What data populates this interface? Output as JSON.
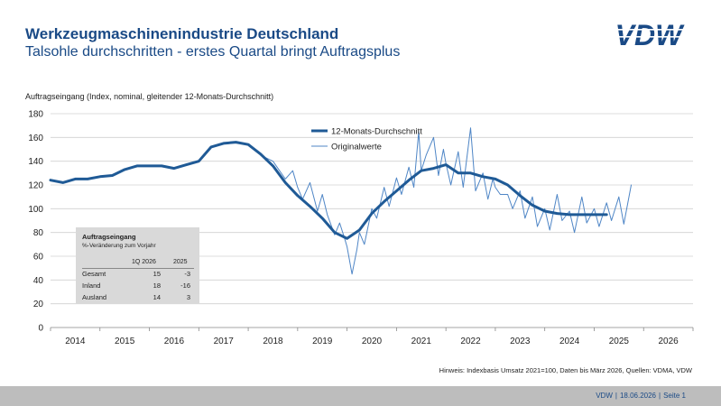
{
  "header": {
    "title": "Werkzeugmaschinenindustrie Deutschland",
    "subtitle": "Talsohle durchschritten - erstes Quartal bringt Auftragsplus",
    "logo_text": "VDW"
  },
  "colors": {
    "accent": "#1a4a86",
    "series_main": "#1f5a96",
    "series_raw": "#4f86c6",
    "grid": "#d0d0d0",
    "footer_bg": "#bdbdbd",
    "box_bg": "#d9d9d9"
  },
  "infobox": {
    "title": "Auftragseingang",
    "subtitle": "%-Veränderung zum Vorjahr",
    "col1": "1Q 2026",
    "col2": "2025",
    "rows": [
      {
        "label": "Gesamt",
        "v1": "15",
        "v2": "-3"
      },
      {
        "label": "Inland",
        "v1": "18",
        "v2": "-16"
      },
      {
        "label": "Ausland",
        "v1": "14",
        "v2": "3"
      }
    ]
  },
  "note": "Hinweis: Indexbasis Umsatz 2021=100, Daten bis März 2026, Quellen: VDMA, VDW",
  "footer": {
    "org": "VDW",
    "date": "18.06.2026",
    "page": "Seite 1"
  },
  "chart_data": {
    "type": "line",
    "ylabel": "Auftragseingang (Index, nominal, gleitender 12-Monats-Durchschnitt)",
    "ylim": [
      0,
      180
    ],
    "yticks": [
      0,
      20,
      40,
      60,
      80,
      100,
      120,
      140,
      160,
      180
    ],
    "xlim": [
      2014.0,
      2027.0
    ],
    "xticks": [
      "2014",
      "2015",
      "2016",
      "2017",
      "2018",
      "2019",
      "2020",
      "2021",
      "2022",
      "2023",
      "2024",
      "2025",
      "2026"
    ],
    "grid": true,
    "legend": "top-center",
    "series": [
      {
        "name": "12-Monats-Durchschnitt",
        "x": [
          2014.0,
          2014.25,
          2014.5,
          2014.75,
          2015.0,
          2015.25,
          2015.5,
          2015.75,
          2016.0,
          2016.25,
          2016.5,
          2016.75,
          2017.0,
          2017.25,
          2017.5,
          2017.75,
          2018.0,
          2018.25,
          2018.5,
          2018.75,
          2019.0,
          2019.25,
          2019.5,
          2019.75,
          2020.0,
          2020.25,
          2020.5,
          2020.75,
          2021.0,
          2021.25,
          2021.5,
          2021.75,
          2022.0,
          2022.25,
          2022.5,
          2022.75,
          2023.0,
          2023.25,
          2023.5,
          2023.75,
          2024.0,
          2024.25,
          2024.5,
          2024.75,
          2025.0,
          2025.25
        ],
        "values": [
          124,
          122,
          125,
          125,
          127,
          128,
          133,
          136,
          136,
          136,
          134,
          137,
          140,
          152,
          155,
          156,
          154,
          146,
          136,
          122,
          111,
          102,
          92,
          80,
          75,
          82,
          96,
          106,
          115,
          124,
          132,
          134,
          137,
          130,
          130,
          127,
          125,
          120,
          111,
          103,
          98,
          96,
          95,
          95,
          95,
          95
        ]
      },
      {
        "name": "Originalwerte",
        "x": [
          2018.25,
          2018.5,
          2018.75,
          2018.9,
          2019.0,
          2019.1,
          2019.25,
          2019.4,
          2019.5,
          2019.6,
          2019.75,
          2019.85,
          2019.95,
          2020.0,
          2020.1,
          2020.2,
          2020.25,
          2020.35,
          2020.5,
          2020.6,
          2020.75,
          2020.85,
          2021.0,
          2021.1,
          2021.25,
          2021.35,
          2021.45,
          2021.5,
          2021.6,
          2021.75,
          2021.85,
          2021.95,
          2022.0,
          2022.1,
          2022.25,
          2022.35,
          2022.5,
          2022.6,
          2022.75,
          2022.85,
          2022.95,
          2023.0,
          2023.1,
          2023.25,
          2023.35,
          2023.5,
          2023.6,
          2023.75,
          2023.85,
          2024.0,
          2024.1,
          2024.25,
          2024.35,
          2024.5,
          2024.6,
          2024.75,
          2024.85,
          2025.0,
          2025.1,
          2025.25,
          2025.35,
          2025.5,
          2025.6,
          2025.75
        ],
        "values": [
          145,
          140,
          125,
          132,
          118,
          108,
          122,
          98,
          112,
          95,
          78,
          88,
          75,
          68,
          45,
          66,
          80,
          70,
          100,
          92,
          118,
          102,
          126,
          112,
          135,
          118,
          165,
          132,
          145,
          160,
          128,
          150,
          138,
          120,
          148,
          118,
          168,
          115,
          130,
          108,
          125,
          118,
          112,
          112,
          100,
          115,
          92,
          110,
          85,
          100,
          82,
          112,
          90,
          98,
          80,
          110,
          88,
          100,
          85,
          105,
          90,
          110,
          87,
          120
        ]
      }
    ]
  }
}
